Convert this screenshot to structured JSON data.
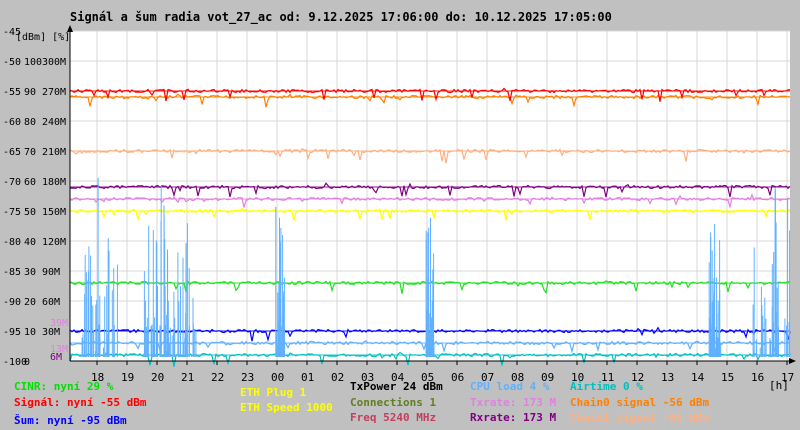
{
  "title": "Signál a šum radia vot_27_ac od: 9.12.2025 17:06:00 do: 10.12.2025 17:05:00",
  "chart_data": {
    "type": "line",
    "y_unit_label": "[dBm] [%]",
    "x_unit_label": "[h]",
    "x_ticks": [
      "18",
      "19",
      "20",
      "21",
      "22",
      "23",
      "00",
      "01",
      "02",
      "03",
      "04",
      "05",
      "06",
      "07",
      "08",
      "09",
      "10",
      "11",
      "12",
      "13",
      "14",
      "15",
      "16",
      "17"
    ],
    "y_dbm_ticks": [
      "-45",
      "-50",
      "-55",
      "-60",
      "-65",
      "-70",
      "-75",
      "-80",
      "-85",
      "-90",
      "-95",
      "-100"
    ],
    "y_pct_ticks": [
      "",
      "100",
      "90",
      "80",
      "70",
      "60",
      "50",
      "40",
      "30",
      "20",
      "10",
      "0"
    ],
    "y_rate_ticks": [
      "",
      "300M",
      "270M",
      "240M",
      "210M",
      "180M",
      "150M",
      "120M",
      "90M",
      "60M",
      "30M",
      ""
    ],
    "extra_left_ticks": {
      "m39": "39M",
      "m13": "13M",
      "m6": "6M"
    },
    "ylim_dbm": [
      -100,
      -45
    ],
    "grid": true,
    "series": [
      {
        "name": "Chain0 signal",
        "color": "#ff8000",
        "approx_dbm": -56
      },
      {
        "name": "Signál",
        "color": "#ff0000",
        "approx_dbm": -55
      },
      {
        "name": "Chain1 signal",
        "color": "#ffb080",
        "approx_dbm": -65
      },
      {
        "name": "Txrate",
        "color": "#e080e0",
        "approx_dbm": -73
      },
      {
        "name": "Rxrate",
        "color": "#800080",
        "approx_dbm": -71
      },
      {
        "name": "ETH Plug",
        "color": "#ffff00",
        "approx_dbm": -75
      },
      {
        "name": "Connections",
        "color": "#20e020",
        "approx_dbm": -87
      },
      {
        "name": "Šum",
        "color": "#0000ff",
        "approx_dbm": -95
      },
      {
        "name": "CPU load",
        "color": "#60b0ff",
        "approx_dbm": -97
      },
      {
        "name": "Airtime",
        "color": "#00c0c0",
        "approx_dbm": -99
      }
    ]
  },
  "legend": [
    {
      "key": "cinr",
      "text": "CINR: nyní 29 %",
      "color": "#00e000"
    },
    {
      "key": "signal",
      "text": "Signál: nyní -55 dBm",
      "color": "#ff0000"
    },
    {
      "key": "sum",
      "text": "Šum: nyní -95 dBm",
      "color": "#0000ff"
    },
    {
      "key": "eth_plug",
      "text": "ETH Plug 1",
      "color": "#ffff00"
    },
    {
      "key": "eth_speed",
      "text": "ETH Speed 1000",
      "color": "#ffff00"
    },
    {
      "key": "txpower",
      "text": "TxPower 24 dBm",
      "color": "#000000"
    },
    {
      "key": "connections",
      "text": "Connections 1",
      "color": "#608020"
    },
    {
      "key": "freq",
      "text": "Freq 5240 MHz",
      "color": "#c04060"
    },
    {
      "key": "cpu",
      "text": "CPU load 4 %",
      "color": "#60b0ff"
    },
    {
      "key": "txrate",
      "text": "Txrate: 173 M",
      "color": "#e080e0"
    },
    {
      "key": "rxrate",
      "text": "Rxrate: 173 M",
      "color": "#800080"
    },
    {
      "key": "airtime",
      "text": "Airtime 0 %",
      "color": "#00c0c0"
    },
    {
      "key": "chain0",
      "text": "Chain0 signal -56 dBm",
      "color": "#ff8000"
    },
    {
      "key": "chain1",
      "text": "Chain1 signal -65 dBm",
      "color": "#ffb080"
    }
  ]
}
